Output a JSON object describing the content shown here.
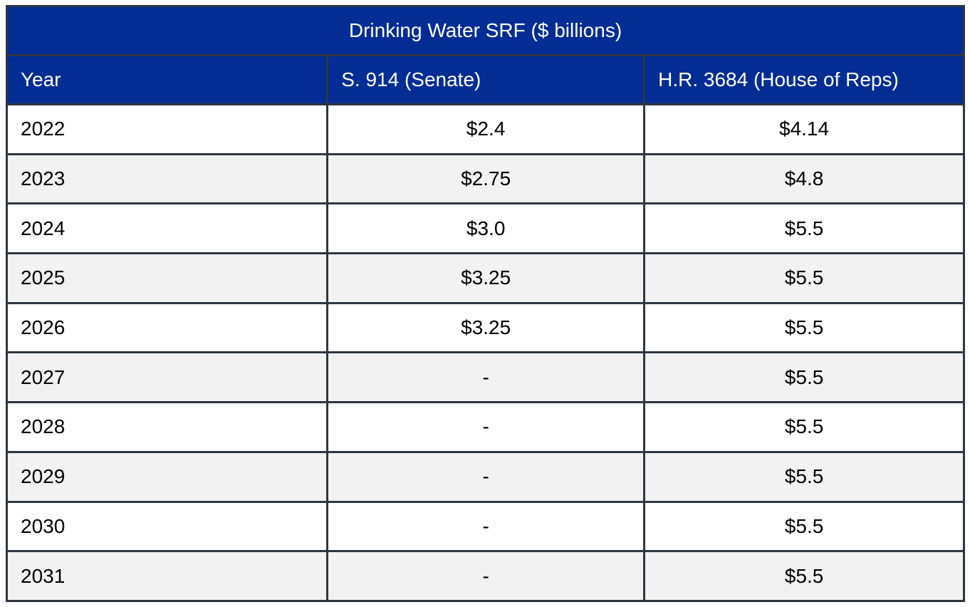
{
  "title": "Drinking Water SRF ($ billions)",
  "columns": {
    "year": "Year",
    "senate": "S. 914 (Senate)",
    "house": "H.R. 3684 (House of Reps)"
  },
  "rows": [
    {
      "year": "2022",
      "senate": "$2.4",
      "house": "$4.14"
    },
    {
      "year": "2023",
      "senate": "$2.75",
      "house": "$4.8"
    },
    {
      "year": "2024",
      "senate": "$3.0",
      "house": "$5.5"
    },
    {
      "year": "2025",
      "senate": "$3.25",
      "house": "$5.5"
    },
    {
      "year": "2026",
      "senate": "$3.25",
      "house": "$5.5"
    },
    {
      "year": "2027",
      "senate": "-",
      "house": "$5.5"
    },
    {
      "year": "2028",
      "senate": "-",
      "house": "$5.5"
    },
    {
      "year": "2029",
      "senate": "-",
      "house": "$5.5"
    },
    {
      "year": "2030",
      "senate": "-",
      "house": "$5.5"
    },
    {
      "year": "2031",
      "senate": "-",
      "house": "$5.5"
    }
  ],
  "colors": {
    "header_background": "#032d95",
    "header_text": "#ffffff",
    "border": "#2e3642",
    "stripe": "#f2f2f2",
    "body_text": "#000000"
  },
  "chart_data": {
    "type": "table",
    "title": "Drinking Water SRF ($ billions)",
    "columns": [
      "Year",
      "S. 914 (Senate)",
      "H.R. 3684 (House of Reps)"
    ],
    "rows": [
      [
        "2022",
        "$2.4",
        "$4.14"
      ],
      [
        "2023",
        "$2.75",
        "$4.8"
      ],
      [
        "2024",
        "$3.0",
        "$5.5"
      ],
      [
        "2025",
        "$3.25",
        "$5.5"
      ],
      [
        "2026",
        "$3.25",
        "$5.5"
      ],
      [
        "2027",
        "-",
        "$5.5"
      ],
      [
        "2028",
        "-",
        "$5.5"
      ],
      [
        "2029",
        "-",
        "$5.5"
      ],
      [
        "2030",
        "-",
        "$5.5"
      ],
      [
        "2031",
        "-",
        "$5.5"
      ]
    ],
    "series": [
      {
        "name": "S. 914 (Senate)",
        "x": [
          2022,
          2023,
          2024,
          2025,
          2026
        ],
        "values": [
          2.4,
          2.75,
          3.0,
          3.25,
          3.25
        ]
      },
      {
        "name": "H.R. 3684 (House of Reps)",
        "x": [
          2022,
          2023,
          2024,
          2025,
          2026,
          2027,
          2028,
          2029,
          2030,
          2031
        ],
        "values": [
          4.14,
          4.8,
          5.5,
          5.5,
          5.5,
          5.5,
          5.5,
          5.5,
          5.5,
          5.5
        ]
      }
    ],
    "units": "$ billions"
  }
}
